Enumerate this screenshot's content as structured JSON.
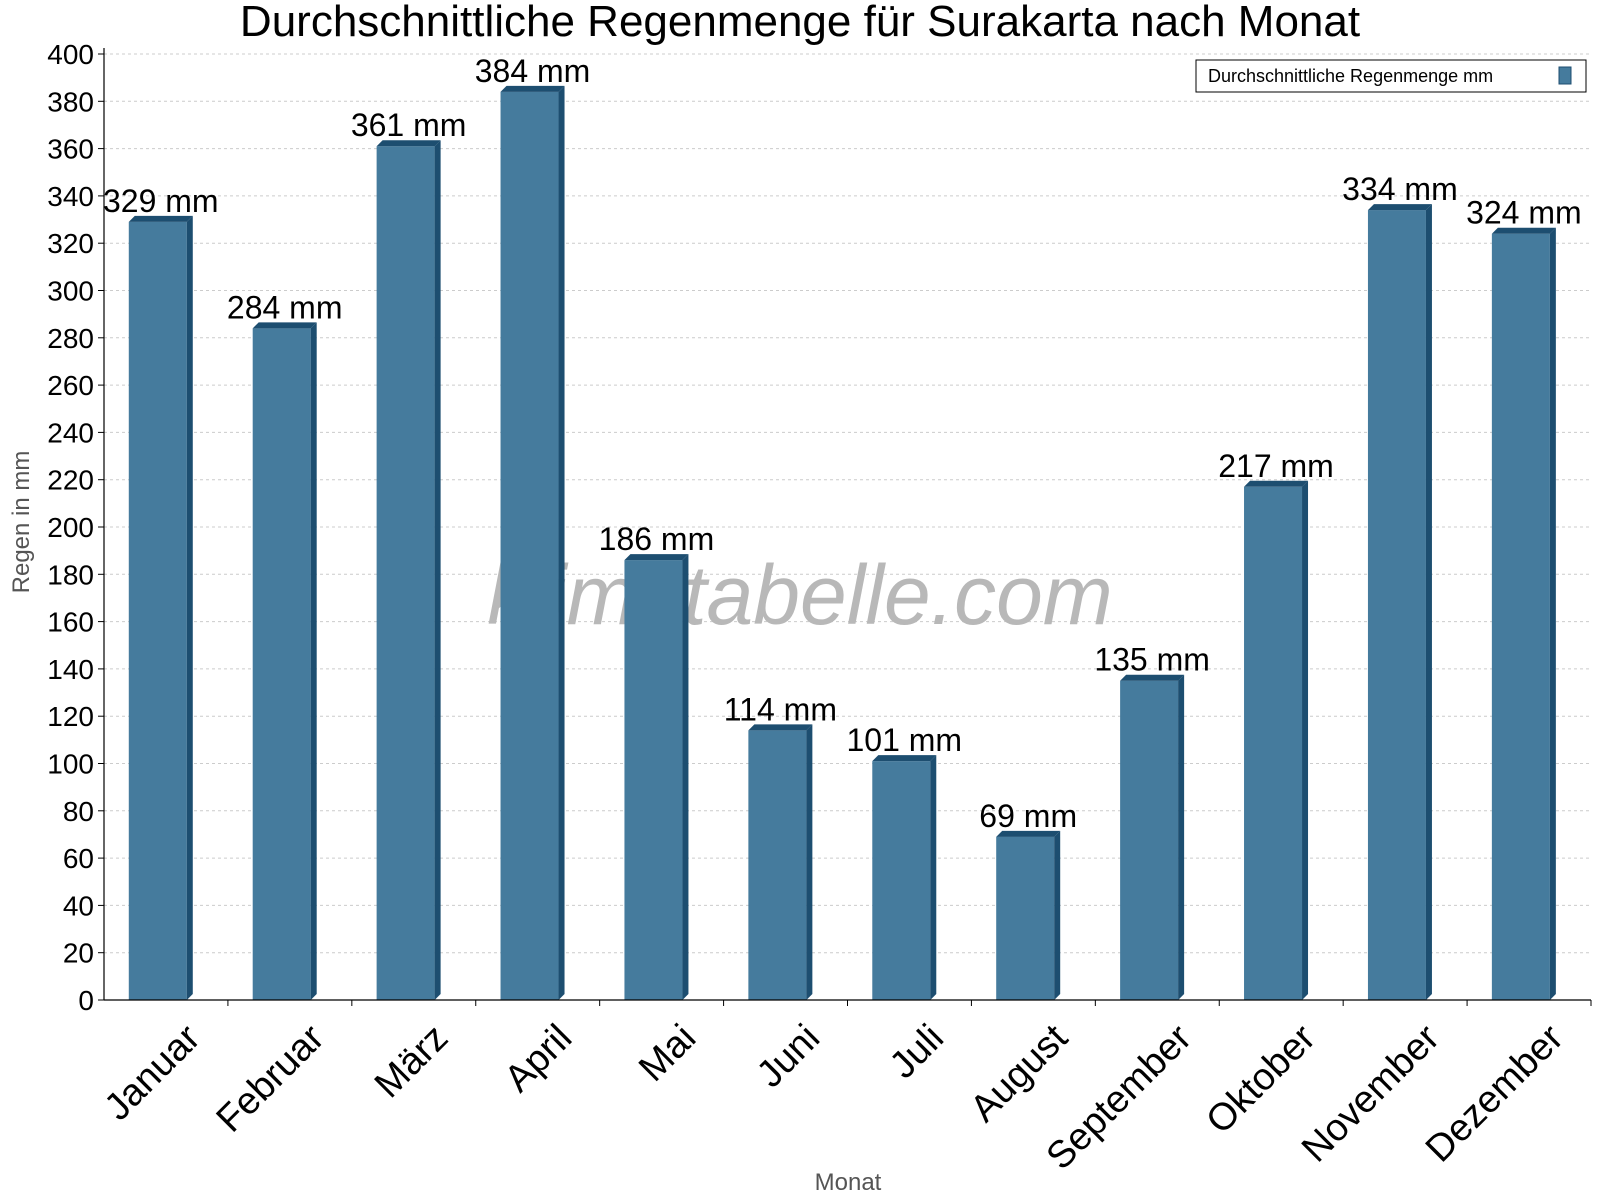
{
  "chart_data": {
    "type": "bar",
    "title": "Durchschnittliche Regenmenge für Surakarta nach Monat",
    "xlabel": "Monat",
    "ylabel": "Regen in mm",
    "ylim": [
      0,
      400
    ],
    "ytick_step": 20,
    "grid": true,
    "legend_position": "top-right",
    "categories": [
      "Januar",
      "Februar",
      "März",
      "April",
      "Mai",
      "Juni",
      "Juli",
      "August",
      "September",
      "Oktober",
      "November",
      "Dezember"
    ],
    "series": [
      {
        "name": "Durchschnittliche Regenmenge mm",
        "values": [
          329,
          284,
          361,
          384,
          186,
          114,
          101,
          69,
          135,
          217,
          334,
          324
        ],
        "unit": "mm",
        "color": "#457b9d",
        "edge_color": "#1d4e70"
      }
    ],
    "watermark": "klimatabelle.com"
  }
}
